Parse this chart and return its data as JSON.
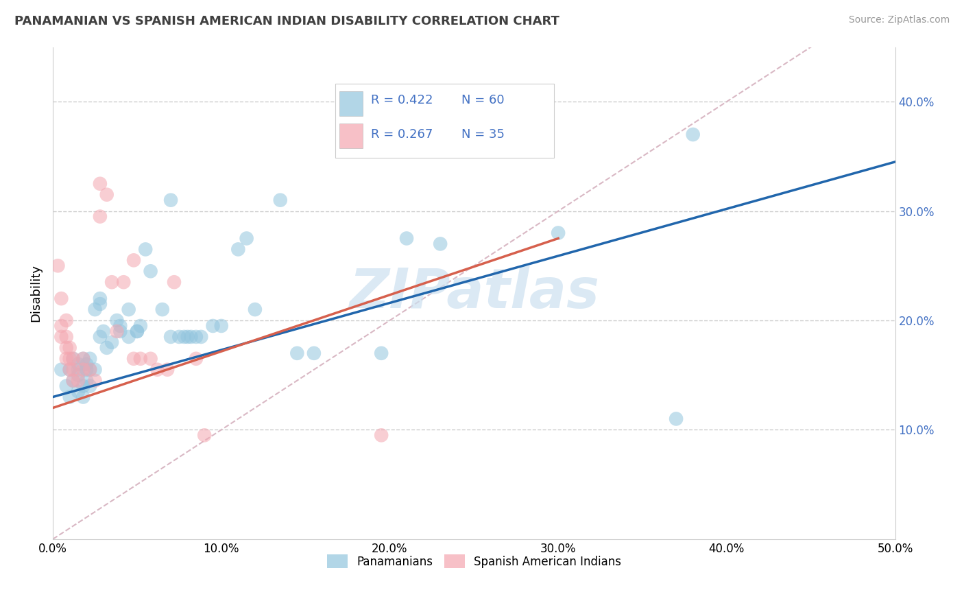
{
  "title": "PANAMANIAN VS SPANISH AMERICAN INDIAN DISABILITY CORRELATION CHART",
  "source": "Source: ZipAtlas.com",
  "ylabel": "Disability",
  "xlim": [
    0.0,
    0.5
  ],
  "ylim": [
    0.0,
    0.45
  ],
  "xticks": [
    0.0,
    0.1,
    0.2,
    0.3,
    0.4,
    0.5
  ],
  "yticks_right": [
    0.1,
    0.2,
    0.3,
    0.4
  ],
  "watermark": "ZIPatlas",
  "legend_r1": "R = 0.422",
  "legend_n1": "N = 60",
  "legend_r2": "R = 0.267",
  "legend_n2": "N = 35",
  "blue_color": "#92c5de",
  "pink_color": "#f4a6b0",
  "blue_line_color": "#2166ac",
  "pink_line_color": "#d6604d",
  "diagonal_color": "#d9b8c4",
  "blue_line": [
    [
      0.0,
      0.13
    ],
    [
      0.5,
      0.345
    ]
  ],
  "pink_line": [
    [
      0.0,
      0.12
    ],
    [
      0.3,
      0.275
    ]
  ],
  "blue_scatter": [
    [
      0.005,
      0.155
    ],
    [
      0.008,
      0.14
    ],
    [
      0.01,
      0.13
    ],
    [
      0.01,
      0.155
    ],
    [
      0.012,
      0.165
    ],
    [
      0.012,
      0.145
    ],
    [
      0.015,
      0.155
    ],
    [
      0.015,
      0.15
    ],
    [
      0.015,
      0.135
    ],
    [
      0.015,
      0.16
    ],
    [
      0.018,
      0.165
    ],
    [
      0.018,
      0.14
    ],
    [
      0.018,
      0.13
    ],
    [
      0.02,
      0.145
    ],
    [
      0.02,
      0.16
    ],
    [
      0.02,
      0.155
    ],
    [
      0.022,
      0.155
    ],
    [
      0.022,
      0.14
    ],
    [
      0.022,
      0.165
    ],
    [
      0.025,
      0.21
    ],
    [
      0.025,
      0.155
    ],
    [
      0.028,
      0.185
    ],
    [
      0.028,
      0.22
    ],
    [
      0.028,
      0.215
    ],
    [
      0.03,
      0.19
    ],
    [
      0.032,
      0.175
    ],
    [
      0.035,
      0.18
    ],
    [
      0.038,
      0.2
    ],
    [
      0.04,
      0.19
    ],
    [
      0.04,
      0.195
    ],
    [
      0.045,
      0.185
    ],
    [
      0.045,
      0.21
    ],
    [
      0.05,
      0.19
    ],
    [
      0.05,
      0.19
    ],
    [
      0.052,
      0.195
    ],
    [
      0.055,
      0.265
    ],
    [
      0.058,
      0.245
    ],
    [
      0.065,
      0.21
    ],
    [
      0.07,
      0.185
    ],
    [
      0.075,
      0.185
    ],
    [
      0.078,
      0.185
    ],
    [
      0.08,
      0.185
    ],
    [
      0.082,
      0.185
    ],
    [
      0.085,
      0.185
    ],
    [
      0.088,
      0.185
    ],
    [
      0.095,
      0.195
    ],
    [
      0.1,
      0.195
    ],
    [
      0.11,
      0.265
    ],
    [
      0.115,
      0.275
    ],
    [
      0.12,
      0.21
    ],
    [
      0.145,
      0.17
    ],
    [
      0.155,
      0.17
    ],
    [
      0.195,
      0.17
    ],
    [
      0.21,
      0.275
    ],
    [
      0.23,
      0.27
    ],
    [
      0.3,
      0.28
    ],
    [
      0.37,
      0.11
    ],
    [
      0.07,
      0.31
    ],
    [
      0.135,
      0.31
    ],
    [
      0.38,
      0.37
    ]
  ],
  "pink_scatter": [
    [
      0.003,
      0.25
    ],
    [
      0.005,
      0.22
    ],
    [
      0.005,
      0.195
    ],
    [
      0.005,
      0.185
    ],
    [
      0.008,
      0.2
    ],
    [
      0.008,
      0.185
    ],
    [
      0.008,
      0.175
    ],
    [
      0.008,
      0.165
    ],
    [
      0.01,
      0.175
    ],
    [
      0.01,
      0.165
    ],
    [
      0.01,
      0.155
    ],
    [
      0.012,
      0.165
    ],
    [
      0.012,
      0.155
    ],
    [
      0.012,
      0.145
    ],
    [
      0.015,
      0.145
    ],
    [
      0.018,
      0.165
    ],
    [
      0.018,
      0.155
    ],
    [
      0.022,
      0.155
    ],
    [
      0.025,
      0.145
    ],
    [
      0.028,
      0.295
    ],
    [
      0.028,
      0.325
    ],
    [
      0.032,
      0.315
    ],
    [
      0.035,
      0.235
    ],
    [
      0.038,
      0.19
    ],
    [
      0.042,
      0.235
    ],
    [
      0.048,
      0.255
    ],
    [
      0.048,
      0.165
    ],
    [
      0.052,
      0.165
    ],
    [
      0.058,
      0.165
    ],
    [
      0.062,
      0.155
    ],
    [
      0.068,
      0.155
    ],
    [
      0.072,
      0.235
    ],
    [
      0.085,
      0.165
    ],
    [
      0.09,
      0.095
    ],
    [
      0.195,
      0.095
    ]
  ]
}
